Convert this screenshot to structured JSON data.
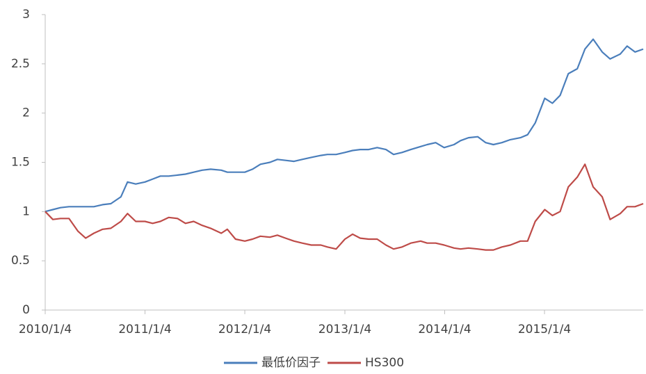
{
  "chart_data": {
    "type": "line",
    "x": [
      "2010/1/4",
      "2010/2/1",
      "2010/3/1",
      "2010/4/1",
      "2010/5/4",
      "2010/6/1",
      "2010/7/1",
      "2010/8/2",
      "2010/9/1",
      "2010/10/8",
      "2010/11/1",
      "2010/12/1",
      "2011/1/4",
      "2011/2/1",
      "2011/3/1",
      "2011/4/1",
      "2011/5/3",
      "2011/6/1",
      "2011/7/1",
      "2011/8/1",
      "2011/9/1",
      "2011/10/10",
      "2011/11/1",
      "2011/12/1",
      "2012/1/4",
      "2012/2/1",
      "2012/3/1",
      "2012/4/5",
      "2012/5/2",
      "2012/6/1",
      "2012/7/2",
      "2012/8/1",
      "2012/9/3",
      "2012/10/8",
      "2012/11/1",
      "2012/12/3",
      "2013/1/4",
      "2013/2/1",
      "2013/3/1",
      "2013/4/1",
      "2013/5/2",
      "2013/6/3",
      "2013/7/1",
      "2013/8/1",
      "2013/9/2",
      "2013/10/8",
      "2013/11/1",
      "2013/12/2",
      "2014/1/2",
      "2014/2/7",
      "2014/3/3",
      "2014/4/1",
      "2014/5/5",
      "2014/6/3",
      "2014/7/1",
      "2014/8/1",
      "2014/9/1",
      "2014/10/8",
      "2014/11/3",
      "2014/12/1",
      "2015/1/5",
      "2015/2/2",
      "2015/3/2",
      "2015/4/1",
      "2015/5/4",
      "2015/6/1",
      "2015/7/1",
      "2015/8/3",
      "2015/9/1",
      "2015/10/8",
      "2015/11/2",
      "2015/12/1",
      "2015/12/31"
    ],
    "series": [
      {
        "name": "最低价因子",
        "color": "#4a7ebb",
        "values": [
          1.0,
          1.02,
          1.04,
          1.05,
          1.05,
          1.05,
          1.05,
          1.07,
          1.08,
          1.15,
          1.3,
          1.28,
          1.3,
          1.33,
          1.36,
          1.36,
          1.37,
          1.38,
          1.4,
          1.42,
          1.43,
          1.42,
          1.4,
          1.4,
          1.4,
          1.43,
          1.48,
          1.5,
          1.53,
          1.52,
          1.51,
          1.53,
          1.55,
          1.57,
          1.58,
          1.58,
          1.6,
          1.62,
          1.63,
          1.63,
          1.65,
          1.63,
          1.58,
          1.6,
          1.63,
          1.66,
          1.68,
          1.7,
          1.65,
          1.68,
          1.72,
          1.75,
          1.76,
          1.7,
          1.68,
          1.7,
          1.73,
          1.75,
          1.78,
          1.9,
          2.15,
          2.1,
          2.18,
          2.4,
          2.45,
          2.65,
          2.75,
          2.62,
          2.55,
          2.6,
          2.68,
          2.62,
          2.65
        ]
      },
      {
        "name": "HS300",
        "color": "#be4b48",
        "values": [
          1.0,
          0.92,
          0.93,
          0.93,
          0.8,
          0.73,
          0.78,
          0.82,
          0.83,
          0.9,
          0.98,
          0.9,
          0.9,
          0.88,
          0.9,
          0.94,
          0.93,
          0.88,
          0.9,
          0.86,
          0.83,
          0.78,
          0.82,
          0.72,
          0.7,
          0.72,
          0.75,
          0.74,
          0.76,
          0.73,
          0.7,
          0.68,
          0.66,
          0.66,
          0.64,
          0.62,
          0.72,
          0.77,
          0.73,
          0.72,
          0.72,
          0.66,
          0.62,
          0.64,
          0.68,
          0.7,
          0.68,
          0.68,
          0.66,
          0.63,
          0.62,
          0.63,
          0.62,
          0.61,
          0.61,
          0.64,
          0.66,
          0.7,
          0.7,
          0.9,
          1.02,
          0.96,
          1.0,
          1.25,
          1.35,
          1.48,
          1.25,
          1.15,
          0.92,
          0.98,
          1.05,
          1.05,
          1.08
        ]
      }
    ],
    "xlim": [
      "2010/1/4",
      "2015/12/31"
    ],
    "xticks": [
      "2010/1/4",
      "2011/1/4",
      "2012/1/4",
      "2013/1/4",
      "2014/1/4",
      "2015/1/4"
    ],
    "ylim": [
      0,
      3
    ],
    "yticks": [
      0,
      0.5,
      1,
      1.5,
      2,
      2.5,
      3
    ],
    "grid": false,
    "legend": "bottom"
  }
}
